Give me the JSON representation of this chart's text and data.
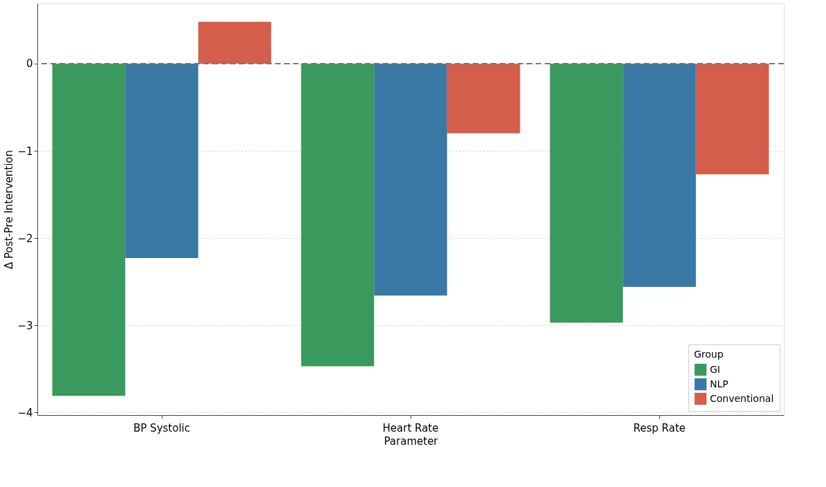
{
  "chart_data": {
    "type": "bar",
    "xlabel": "Parameter",
    "ylabel": "Δ Post-Pre Intervention",
    "legend_title": "Group",
    "categories": [
      "BP Systolic",
      "Heart Rate",
      "Resp Rate"
    ],
    "series": [
      {
        "name": "GI",
        "color": "#3a9a5e",
        "values": [
          -3.81,
          -3.47,
          -2.97
        ]
      },
      {
        "name": "NLP",
        "color": "#3a78a6",
        "values": [
          -2.23,
          -2.66,
          -2.56
        ]
      },
      {
        "name": "Conventional",
        "color": "#d45d4c",
        "values": [
          0.48,
          -0.8,
          -1.27
        ]
      }
    ],
    "ylim": [
      -4.03,
      0.69
    ],
    "yticks": [
      -4,
      -3,
      -2,
      -1,
      0
    ],
    "grid": "y",
    "legend": "bottom right",
    "ref_lines": [
      {
        "axis": "y",
        "value": 0,
        "label": null,
        "color": "#777777",
        "line_style": "dashed"
      }
    ]
  }
}
